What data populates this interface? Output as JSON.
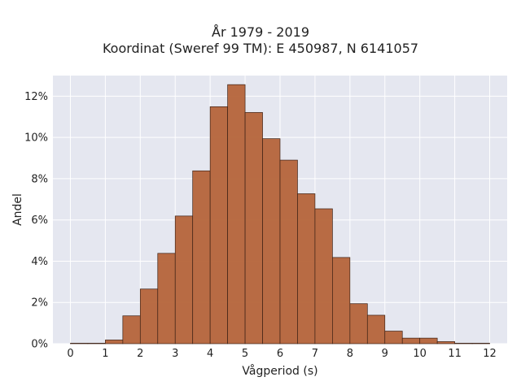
{
  "chart_data": {
    "type": "bar",
    "title": "År 1979 - 2019",
    "subtitle": "Koordinat (Sweref 99 TM): E 450987, N 6141057",
    "xlabel": "Vågperiod (s)",
    "ylabel": "Andel",
    "xlim": [
      -0.5,
      12.5
    ],
    "ylim": [
      0,
      0.13
    ],
    "x_ticks": [
      0,
      1,
      2,
      3,
      4,
      5,
      6,
      7,
      8,
      9,
      10,
      11,
      12
    ],
    "x_tick_labels": [
      "0",
      "1",
      "2",
      "3",
      "4",
      "5",
      "6",
      "7",
      "8",
      "9",
      "10",
      "11",
      "12"
    ],
    "y_ticks": [
      0,
      0.02,
      0.04,
      0.06,
      0.08,
      0.1,
      0.12
    ],
    "y_tick_labels": [
      "0%",
      "2%",
      "4%",
      "6%",
      "8%",
      "10%",
      "12%"
    ],
    "bin_width": 0.5,
    "bins": [
      {
        "x0": 0.0,
        "x1": 0.5,
        "value": 0.0002
      },
      {
        "x0": 0.5,
        "x1": 1.0,
        "value": 0.0
      },
      {
        "x0": 1.0,
        "x1": 1.5,
        "value": 0.0018
      },
      {
        "x0": 1.5,
        "x1": 2.0,
        "value": 0.0135
      },
      {
        "x0": 2.0,
        "x1": 2.5,
        "value": 0.0265
      },
      {
        "x0": 2.5,
        "x1": 3.0,
        "value": 0.0438
      },
      {
        "x0": 3.0,
        "x1": 3.5,
        "value": 0.0619
      },
      {
        "x0": 3.5,
        "x1": 4.0,
        "value": 0.0838
      },
      {
        "x0": 4.0,
        "x1": 4.5,
        "value": 0.1149
      },
      {
        "x0": 4.5,
        "x1": 5.0,
        "value": 0.1256
      },
      {
        "x0": 5.0,
        "x1": 5.5,
        "value": 0.1121
      },
      {
        "x0": 5.5,
        "x1": 6.0,
        "value": 0.0994
      },
      {
        "x0": 6.0,
        "x1": 6.5,
        "value": 0.089
      },
      {
        "x0": 6.5,
        "x1": 7.0,
        "value": 0.0727
      },
      {
        "x0": 7.0,
        "x1": 7.5,
        "value": 0.0654
      },
      {
        "x0": 7.5,
        "x1": 8.0,
        "value": 0.0418
      },
      {
        "x0": 8.0,
        "x1": 8.5,
        "value": 0.0194
      },
      {
        "x0": 8.5,
        "x1": 9.0,
        "value": 0.0138
      },
      {
        "x0": 9.0,
        "x1": 9.5,
        "value": 0.0061
      },
      {
        "x0": 9.5,
        "x1": 10.0,
        "value": 0.0027
      },
      {
        "x0": 10.0,
        "x1": 10.5,
        "value": 0.0027
      },
      {
        "x0": 10.5,
        "x1": 11.0,
        "value": 0.001
      },
      {
        "x0": 11.0,
        "x1": 11.5,
        "value": 0.0
      },
      {
        "x0": 11.5,
        "x1": 12.0,
        "value": 0.0001
      }
    ],
    "grid": true,
    "colors": {
      "bar_fill": "#b5643a",
      "bar_stroke": "#3d2216",
      "plot_background": "#e5e7f0",
      "grid": "#ffffff"
    }
  }
}
